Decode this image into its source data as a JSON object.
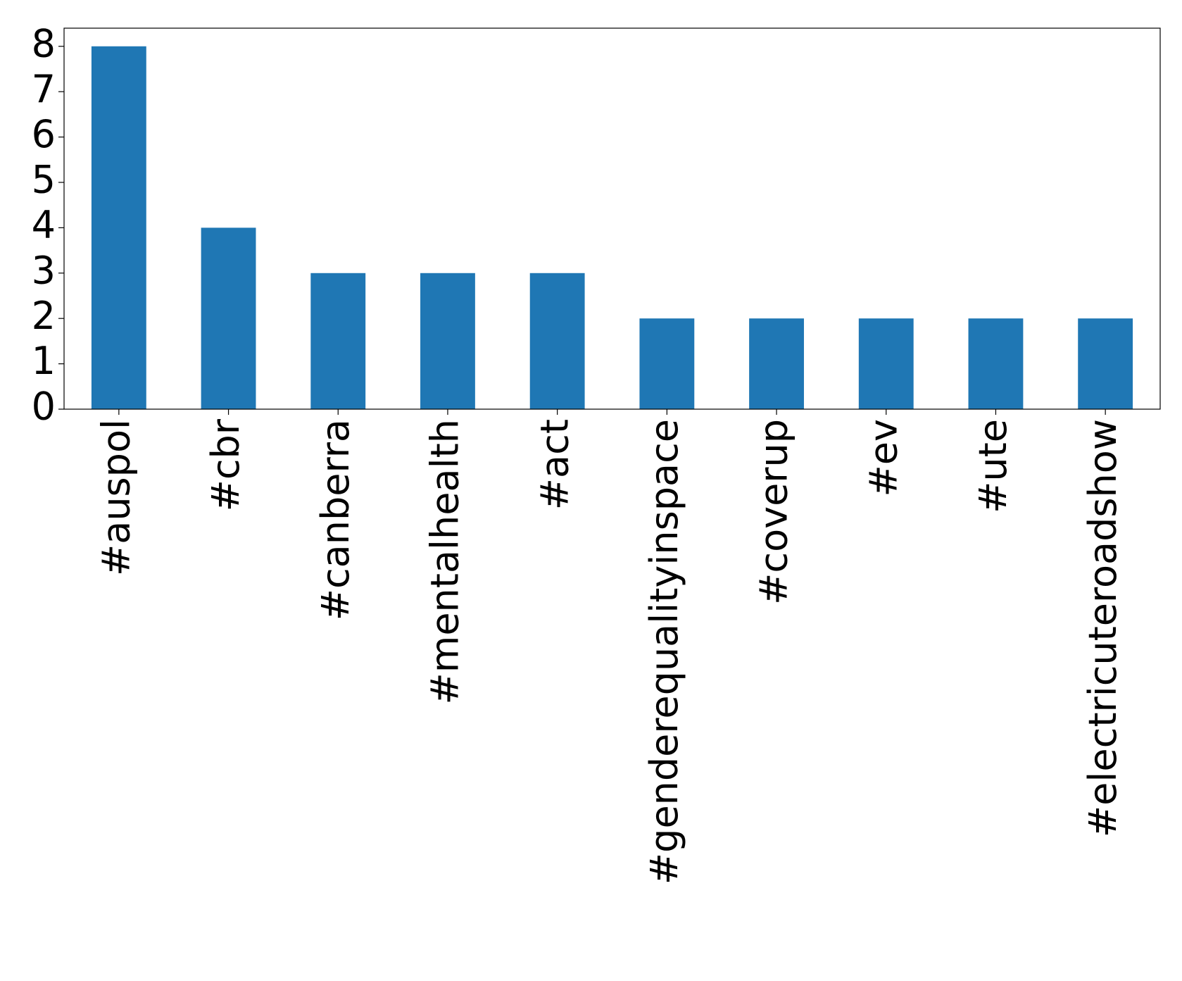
{
  "chart_data": {
    "type": "bar",
    "categories": [
      "#auspol",
      "#cbr",
      "#canberra",
      "#mentalhealth",
      "#act",
      "#genderequalityinspace",
      "#coverup",
      "#ev",
      "#ute",
      "#electricuteroadshow"
    ],
    "values": [
      8,
      4,
      3,
      3,
      3,
      2,
      2,
      2,
      2,
      2
    ],
    "color": "#1f77b4",
    "ylim": [
      0,
      8.4
    ],
    "yticks": [
      0,
      1,
      2,
      3,
      4,
      5,
      6,
      7,
      8
    ],
    "grid": false
  }
}
